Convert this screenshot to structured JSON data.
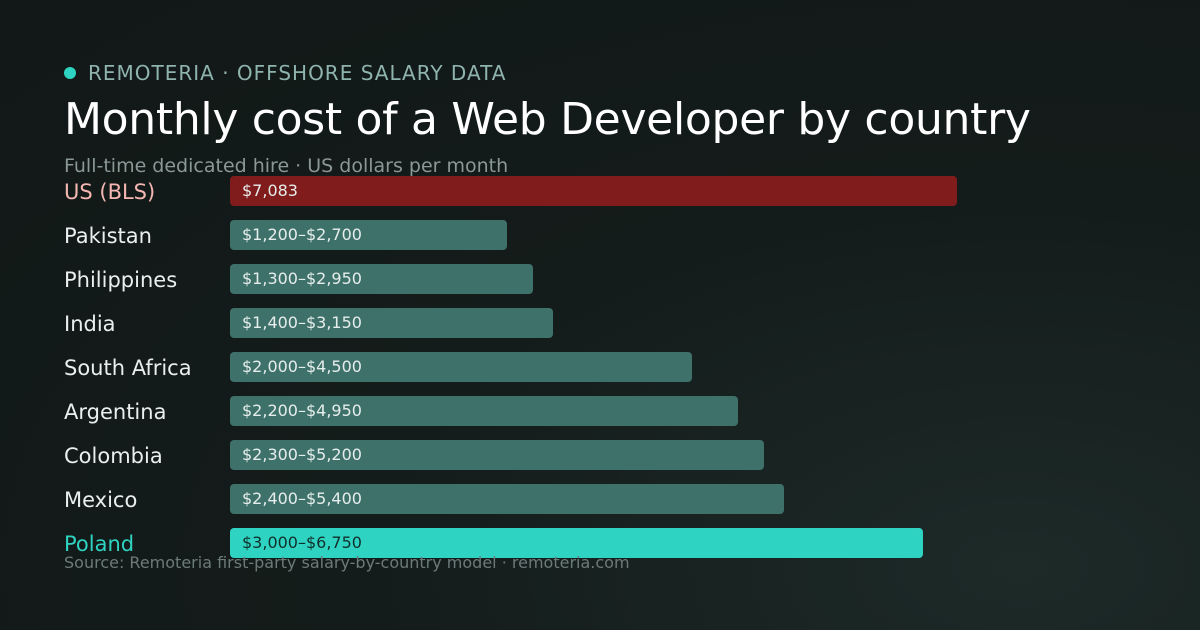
{
  "header": {
    "brand": "REMOTERIA · OFFSHORE SALARY DATA",
    "title": "Monthly cost of a Web Developer by country",
    "subtitle": "Full-time dedicated hire · US dollars per month"
  },
  "footer": {
    "source": "Source: Remoteria first-party salary-by-country model · remoteria.com"
  },
  "colors": {
    "brand_dot": "#2fd3c1",
    "us_bar": "#801c1c",
    "default_bar": "#3f716b",
    "highlight_bar": "#2fd3c1"
  },
  "chart_data": {
    "type": "bar",
    "orientation": "horizontal",
    "title": "Monthly cost of a Web Developer by country",
    "subtitle": "Full-time dedicated hire · US dollars per month",
    "xlabel": "",
    "ylabel": "",
    "xlim": [
      0,
      7500
    ],
    "grid": false,
    "legend": "none",
    "bars": [
      {
        "category": "US (BLS)",
        "value": 7083,
        "label": "$7,083",
        "style": "us"
      },
      {
        "category": "Pakistan",
        "low": 1200,
        "value": 2700,
        "label": "$1,200–$2,700",
        "style": "default"
      },
      {
        "category": "Philippines",
        "low": 1300,
        "value": 2950,
        "label": "$1,300–$2,950",
        "style": "default"
      },
      {
        "category": "India",
        "low": 1400,
        "value": 3150,
        "label": "$1,400–$3,150",
        "style": "default"
      },
      {
        "category": "South Africa",
        "low": 2000,
        "value": 4500,
        "label": "$2,000–$4,500",
        "style": "default"
      },
      {
        "category": "Argentina",
        "low": 2200,
        "value": 4950,
        "label": "$2,200–$4,950",
        "style": "default"
      },
      {
        "category": "Colombia",
        "low": 2300,
        "value": 5200,
        "label": "$2,300–$5,200",
        "style": "default"
      },
      {
        "category": "Mexico",
        "low": 2400,
        "value": 5400,
        "label": "$2,400–$5,400",
        "style": "default"
      },
      {
        "category": "Poland",
        "low": 3000,
        "value": 6750,
        "label": "$3,000–$6,750",
        "style": "highlight"
      }
    ]
  }
}
